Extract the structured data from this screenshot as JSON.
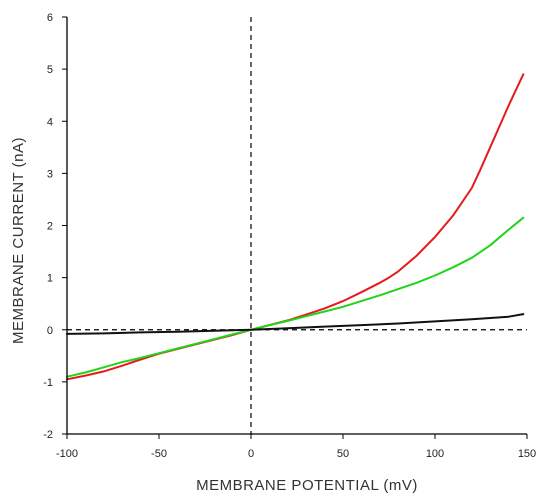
{
  "chart_data": {
    "type": "line",
    "xlabel": "MEMBRANE POTENTIAL (mV)",
    "ylabel": "MEMBRANE CURRENT (nA)",
    "xlim": [
      -100,
      150
    ],
    "ylim": [
      -2,
      6
    ],
    "x_ticks": [
      "-100",
      "-50",
      "0",
      "50",
      "100",
      "150"
    ],
    "y_ticks": [
      "-2",
      "-1",
      "0",
      "1",
      "2",
      "3",
      "4",
      "5",
      "6"
    ],
    "grid": false,
    "legend": "none",
    "reference_lines": {
      "horizontal_dashed_at_y": 0,
      "vertical_dashed_at_x": 0
    },
    "series": [
      {
        "color": "#e41a1c",
        "x": [
          -100,
          -90,
          -80,
          -70,
          -60,
          -50,
          -40,
          -30,
          -20,
          -10,
          0,
          10,
          20,
          30,
          40,
          50,
          60,
          70,
          75,
          80,
          90,
          100,
          110,
          120,
          125,
          130,
          140,
          148
        ],
        "y": [
          -0.95,
          -0.88,
          -0.8,
          -0.69,
          -0.57,
          -0.46,
          -0.37,
          -0.28,
          -0.19,
          -0.1,
          0.0,
          0.09,
          0.18,
          0.29,
          0.41,
          0.55,
          0.72,
          0.9,
          1.0,
          1.12,
          1.42,
          1.78,
          2.2,
          2.72,
          3.1,
          3.5,
          4.3,
          4.9
        ]
      },
      {
        "color": "#22d418",
        "x": [
          -100,
          -90,
          -80,
          -70,
          -60,
          -50,
          -40,
          -30,
          -20,
          -10,
          0,
          10,
          20,
          30,
          40,
          50,
          60,
          70,
          80,
          90,
          100,
          110,
          120,
          130,
          140,
          148
        ],
        "y": [
          -0.9,
          -0.82,
          -0.72,
          -0.62,
          -0.54,
          -0.45,
          -0.36,
          -0.27,
          -0.18,
          -0.09,
          0.0,
          0.09,
          0.17,
          0.26,
          0.35,
          0.44,
          0.55,
          0.66,
          0.78,
          0.9,
          1.04,
          1.2,
          1.38,
          1.62,
          1.92,
          2.15
        ]
      },
      {
        "color": "#111111",
        "x": [
          -100,
          -80,
          -60,
          -40,
          -20,
          0,
          20,
          40,
          60,
          80,
          100,
          120,
          140,
          148
        ],
        "y": [
          -0.08,
          -0.07,
          -0.05,
          -0.04,
          -0.02,
          0.0,
          0.03,
          0.06,
          0.09,
          0.12,
          0.16,
          0.2,
          0.25,
          0.3
        ]
      }
    ]
  }
}
